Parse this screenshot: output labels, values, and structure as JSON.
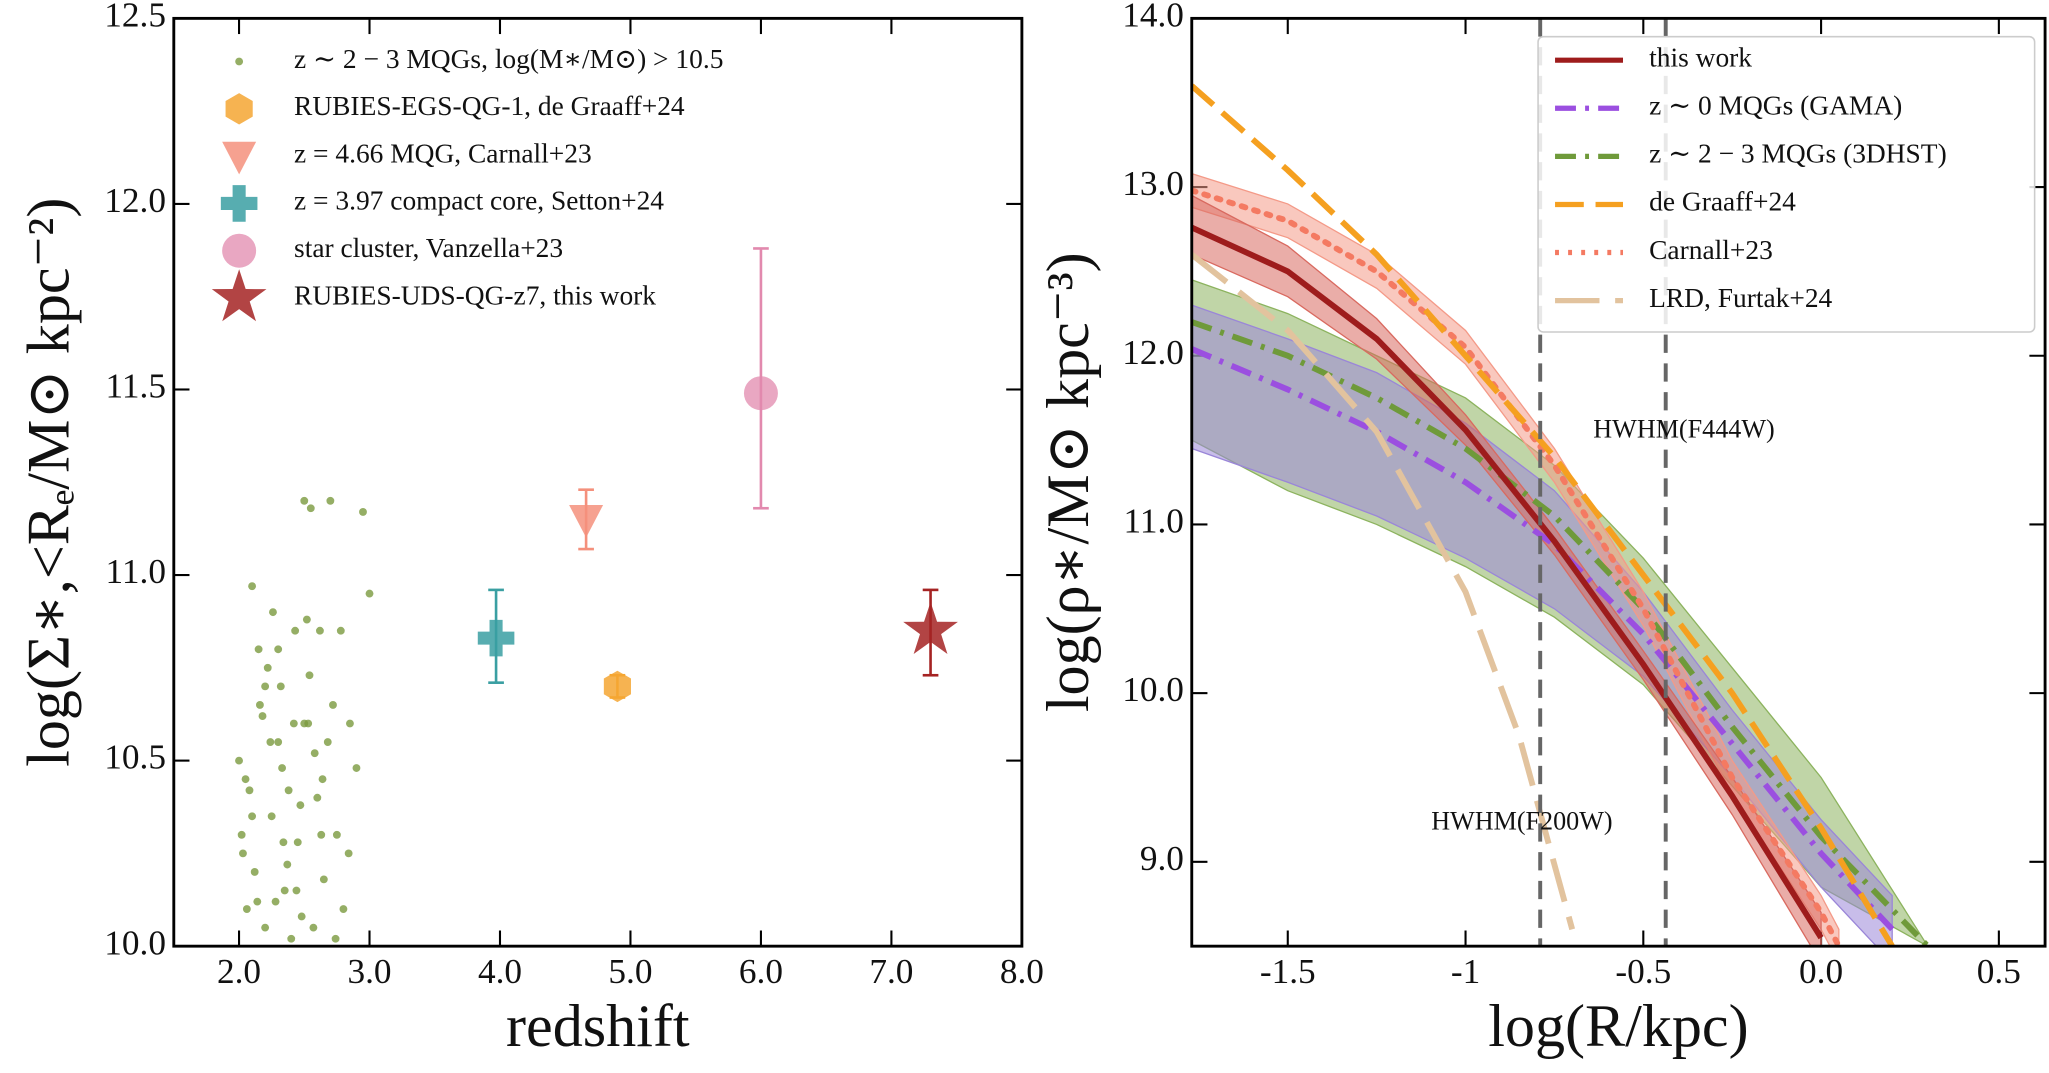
{
  "chart_data": [
    {
      "type": "scatter",
      "xlabel": "redshift",
      "ylabel": "log(Σ∗,<Rₑ/M⊙ kpc⁻²)",
      "xlim": [
        1.5,
        8.0
      ],
      "xticks": [
        {
          "value": 2,
          "label": "2.0"
        },
        {
          "value": 3,
          "label": "3.0"
        },
        {
          "value": 4,
          "label": "4.0"
        },
        {
          "value": 5,
          "label": "5.0"
        },
        {
          "value": 6,
          "label": "6.0"
        },
        {
          "value": 7,
          "label": "7.0"
        },
        {
          "value": 8,
          "label": "8.0"
        }
      ],
      "ylim": [
        10.0,
        12.5
      ],
      "yticks": [
        {
          "value": 10,
          "label": "10.0"
        },
        {
          "value": 10.5,
          "label": "10.5"
        },
        {
          "value": 11,
          "label": "11.0"
        },
        {
          "value": 11.5,
          "label": "11.5"
        },
        {
          "value": 12,
          "label": "12.0"
        },
        {
          "value": 12.5,
          "label": "12.5"
        }
      ],
      "legend": "upper left",
      "series": [
        {
          "name": "z ∼ 2 − 3 MQGs, log(M∗/M⊙) > 10.5",
          "color": "#7a9a3e",
          "marker": "dot",
          "x": [
            2.0,
            2.02,
            2.05,
            2.1,
            2.12,
            2.15,
            2.18,
            2.2,
            2.22,
            2.25,
            2.28,
            2.3,
            2.32,
            2.35,
            2.38,
            2.4,
            2.42,
            2.45,
            2.48,
            2.5,
            2.52,
            2.55,
            2.58,
            2.6,
            2.62,
            2.65,
            2.7,
            2.72,
            2.75,
            2.8,
            2.85,
            2.9,
            2.95,
            3.0,
            2.03,
            2.08,
            2.14,
            2.2,
            2.26,
            2.33,
            2.37,
            2.43,
            2.47,
            2.53,
            2.57,
            2.63,
            2.68,
            2.78,
            2.06,
            2.16,
            2.24,
            2.34,
            2.44,
            2.54,
            2.64,
            2.74,
            2.84,
            2.1,
            2.3,
            2.5
          ],
          "values": [
            10.5,
            10.3,
            10.45,
            10.97,
            10.2,
            10.8,
            10.62,
            10.05,
            10.75,
            10.35,
            10.12,
            10.55,
            10.7,
            10.15,
            10.42,
            10.02,
            10.6,
            10.28,
            10.08,
            11.2,
            10.88,
            11.18,
            10.52,
            10.4,
            10.85,
            10.18,
            11.2,
            10.65,
            10.3,
            10.1,
            10.6,
            10.48,
            11.17,
            10.95,
            10.25,
            10.42,
            10.12,
            10.7,
            10.9,
            10.48,
            10.22,
            10.85,
            10.38,
            10.6,
            10.05,
            10.3,
            10.55,
            10.85,
            10.1,
            10.65,
            10.55,
            10.28,
            10.15,
            10.73,
            10.45,
            10.02,
            10.25,
            10.35,
            10.8,
            10.6
          ]
        },
        {
          "name": "RUBIES-EGS-QG-1, de Graaff+24",
          "color": "#f5a632",
          "marker": "hexagon",
          "x": [
            4.9
          ],
          "values": [
            10.7
          ],
          "yerr_minus": [
            0.03
          ],
          "yerr_plus": [
            0.03
          ]
        },
        {
          "name": "z = 4.66 MQG, Carnall+23",
          "color": "#f4907c",
          "marker": "triangle-down",
          "x": [
            4.66
          ],
          "values": [
            11.15
          ],
          "yerr_minus": [
            0.08
          ],
          "yerr_plus": [
            0.08
          ]
        },
        {
          "name": "z = 3.97 compact core, Setton+24",
          "color": "#3a9fa2",
          "marker": "plus",
          "x": [
            3.97
          ],
          "values": [
            10.83
          ],
          "yerr_minus": [
            0.12
          ],
          "yerr_plus": [
            0.13
          ]
        },
        {
          "name": "star cluster, Vanzella+23",
          "color": "#e289ae",
          "marker": "circle",
          "x": [
            6.0
          ],
          "values": [
            11.49
          ],
          "yerr_minus": [
            0.31
          ],
          "yerr_plus": [
            0.39
          ]
        },
        {
          "name": "RUBIES-UDS-QG-z7, this work",
          "color": "#a52323",
          "marker": "star",
          "x": [
            7.3
          ],
          "values": [
            10.85
          ],
          "yerr_minus": [
            0.12
          ],
          "yerr_plus": [
            0.11
          ]
        }
      ]
    },
    {
      "type": "line",
      "xlabel": "log(R/kpc)",
      "ylabel": "log(ρ∗/M⊙ kpc⁻³)",
      "xlim": [
        -1.77,
        0.63
      ],
      "xticks": [
        -1.5,
        -1.0,
        -0.5,
        {
          "value": 0,
          "label": "0.0"
        },
        0.5
      ],
      "ylim": [
        8.5,
        14.0
      ],
      "yticks": [
        {
          "value": 9,
          "label": "9.0"
        },
        {
          "value": 10,
          "label": "10.0"
        },
        {
          "value": 11,
          "label": "11.0"
        },
        {
          "value": 12,
          "label": "12.0"
        },
        {
          "value": 13,
          "label": "13.0"
        },
        {
          "value": 14,
          "label": "14.0"
        }
      ],
      "legend": "upper right",
      "vlines": [
        {
          "x": -0.79,
          "label": "HWHM(F200W)"
        },
        {
          "x": -0.437,
          "label": "HWHM(F444W)"
        }
      ],
      "series": [
        {
          "name": "z ∼ 2 − 3 MQGs (3DHST)",
          "color": "#6f9a3a",
          "band_color": "#8cb35e",
          "dash": "dashdot",
          "legend_order": 2,
          "x": [
            -1.77,
            -1.5,
            -1.25,
            -1.0,
            -0.75,
            -0.5,
            -0.25,
            0.0,
            0.3
          ],
          "values": [
            12.2,
            12.0,
            11.75,
            11.45,
            11.05,
            10.5,
            9.8,
            9.15,
            8.5
          ],
          "upper": [
            12.45,
            12.25,
            12.0,
            11.75,
            11.35,
            10.8,
            10.15,
            9.5,
            8.5
          ],
          "lower": [
            11.5,
            11.2,
            11.0,
            10.75,
            10.45,
            10.05,
            9.45,
            8.85,
            8.5
          ]
        },
        {
          "name": "z ∼ 0 MQGs (GAMA)",
          "color": "#9b4fe0",
          "band_color": "#9a86d8",
          "dash": "dashdot",
          "legend_order": 1,
          "x": [
            -1.77,
            -1.5,
            -1.25,
            -1.0,
            -0.75,
            -0.5,
            -0.25,
            0.0,
            0.2
          ],
          "values": [
            12.04,
            11.8,
            11.55,
            11.25,
            10.88,
            10.35,
            9.7,
            9.05,
            8.6
          ],
          "upper": [
            12.3,
            12.1,
            11.9,
            11.6,
            11.2,
            10.6,
            9.9,
            9.25,
            8.8
          ],
          "lower": [
            11.45,
            11.25,
            11.05,
            10.8,
            10.5,
            10.1,
            9.5,
            8.85,
            8.4
          ]
        },
        {
          "name": "Carnall+23",
          "color": "#f47a62",
          "band_color": "#f49a88",
          "dash": "dotted",
          "legend_order": 4,
          "x": [
            -1.77,
            -1.5,
            -1.25,
            -1.0,
            -0.75,
            -0.5,
            -0.25,
            0.0,
            0.05
          ],
          "values": [
            12.98,
            12.8,
            12.5,
            12.05,
            11.35,
            10.5,
            9.5,
            8.7,
            8.5
          ],
          "upper": [
            13.08,
            12.9,
            12.6,
            12.15,
            11.45,
            10.6,
            9.6,
            8.8,
            8.6
          ],
          "lower": [
            12.88,
            12.7,
            12.4,
            11.95,
            11.25,
            10.4,
            9.4,
            8.6,
            8.4
          ]
        },
        {
          "name": "this work",
          "color": "#9e1c1c",
          "band_color": "#d96a60",
          "dash": "solid",
          "legend_order": 0,
          "x": [
            -1.77,
            -1.5,
            -1.25,
            -1.0,
            -0.75,
            -0.5,
            -0.25,
            0.0
          ],
          "values": [
            12.76,
            12.5,
            12.1,
            11.56,
            10.9,
            10.17,
            9.39,
            8.55
          ],
          "upper": [
            12.95,
            12.65,
            12.22,
            11.65,
            10.98,
            10.25,
            9.5,
            8.7
          ],
          "lower": [
            12.6,
            12.35,
            11.98,
            11.47,
            10.82,
            10.08,
            9.28,
            8.4
          ]
        },
        {
          "name": "de Graaff+24",
          "color": "#f5a020",
          "dash": "dashed",
          "legend_order": 3,
          "x": [
            -1.77,
            -1.5,
            -1.25,
            -1.0,
            -0.75,
            -0.5,
            -0.25,
            0.0,
            0.2
          ],
          "values": [
            13.6,
            13.1,
            12.6,
            12.0,
            11.4,
            10.7,
            10.0,
            9.2,
            8.5
          ]
        },
        {
          "name": "LRD, Furtak+24",
          "color": "#e2c39e",
          "dash": "longdash",
          "legend_order": 5,
          "x": [
            -1.77,
            -1.5,
            -1.25,
            -1.0,
            -0.85,
            -0.7
          ],
          "values": [
            12.6,
            12.15,
            11.55,
            10.6,
            9.75,
            8.6
          ]
        }
      ]
    }
  ]
}
